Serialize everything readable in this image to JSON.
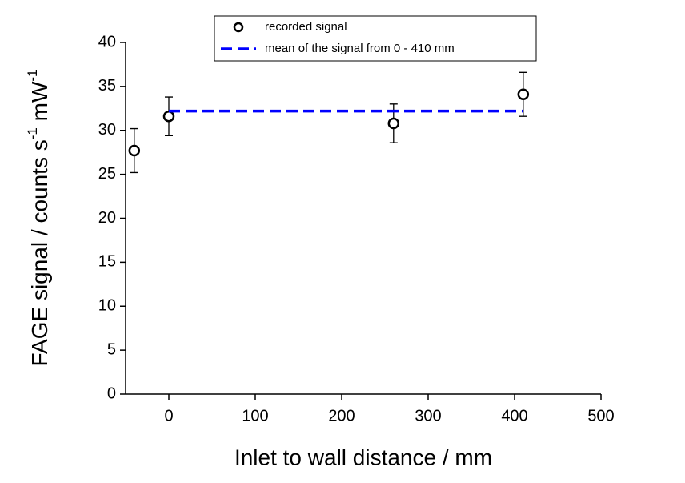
{
  "chart_data": {
    "type": "scatter",
    "xlabel": "Inlet to wall distance / mm",
    "ylabel_parts": [
      "FAGE signal / counts s",
      "-1",
      " mW",
      "-1"
    ],
    "xlim": [
      -50,
      500
    ],
    "xticks": [
      0,
      100,
      200,
      300,
      400,
      500
    ],
    "ylim": [
      0,
      40
    ],
    "yticks": [
      0,
      5,
      10,
      15,
      20,
      25,
      30,
      35,
      40
    ],
    "legend": "top",
    "series": [
      {
        "name": "recorded signal",
        "kind": "points",
        "color": "#000000",
        "x": [
          -40,
          0,
          260,
          410
        ],
        "values": [
          27.7,
          31.6,
          30.8,
          34.1
        ],
        "errors": [
          2.5,
          2.2,
          2.2,
          2.5
        ]
      },
      {
        "name": "mean of the signal from 0 - 410 mm",
        "kind": "dashed-line",
        "color": "#0000ff",
        "x": [
          0,
          410
        ],
        "values": [
          32.2,
          32.2
        ]
      }
    ]
  }
}
